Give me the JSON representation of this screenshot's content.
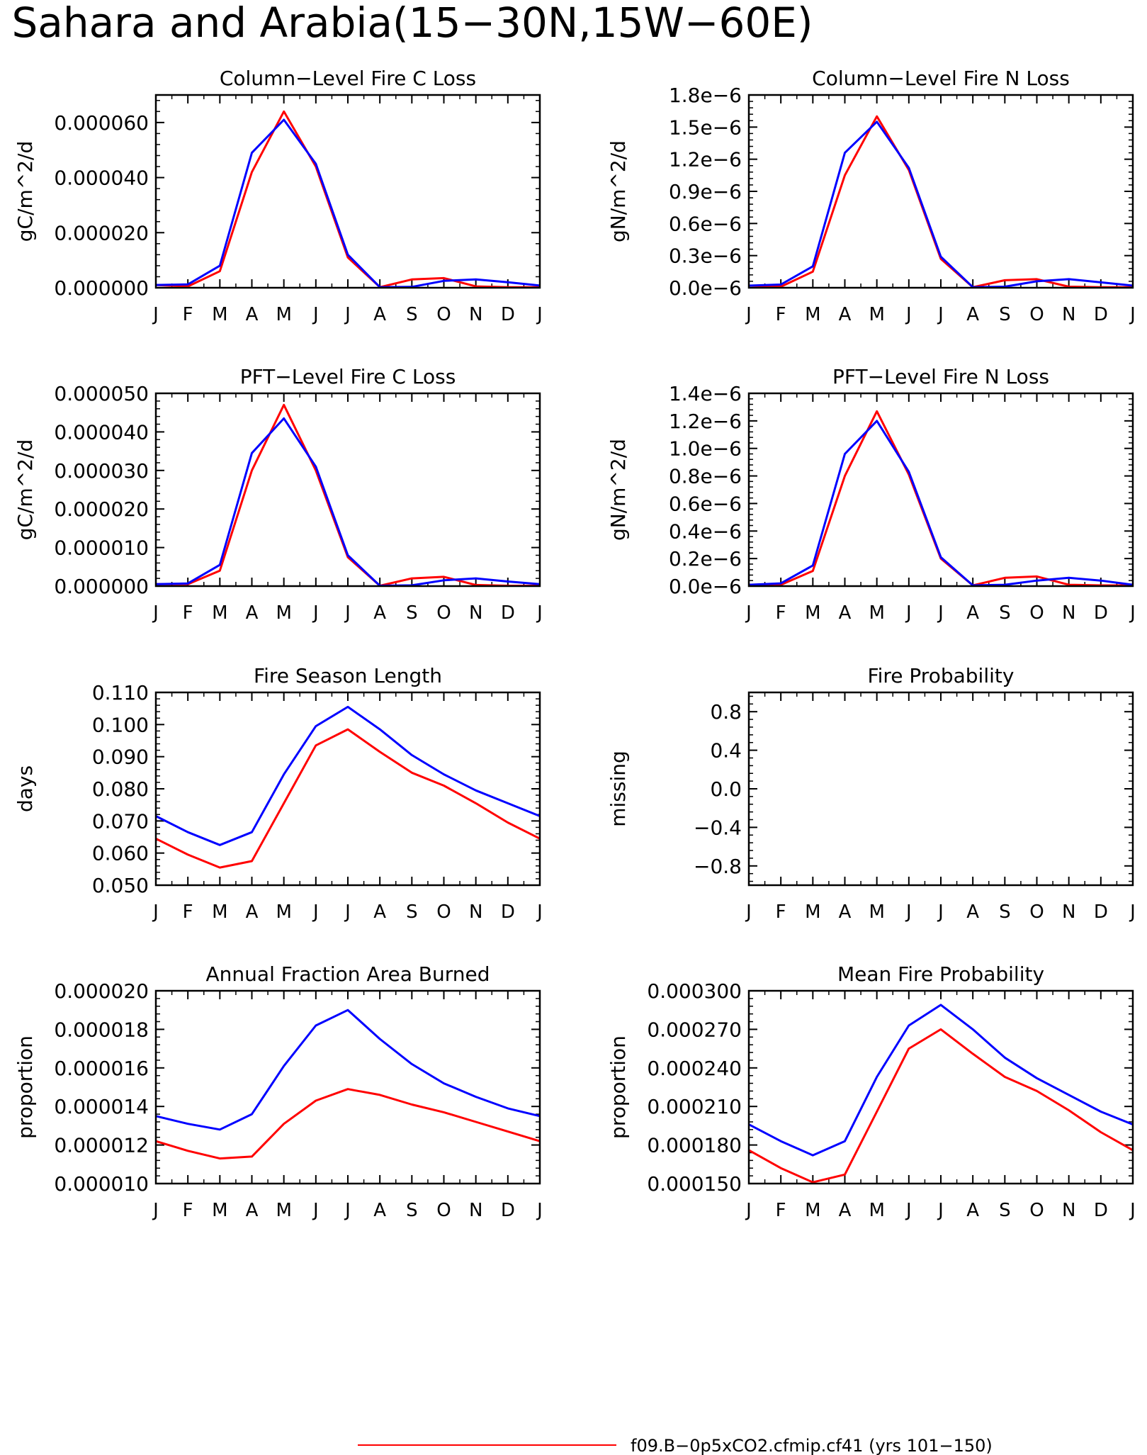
{
  "page": {
    "title": "Sahara and Arabia(15−30N,15W−60E)"
  },
  "months": [
    "J",
    "F",
    "M",
    "A",
    "M",
    "J",
    "J",
    "A",
    "S",
    "O",
    "N",
    "D",
    "J"
  ],
  "colors": {
    "red": "#ff0000",
    "blue": "#0000ff"
  },
  "legend": {
    "entries": [
      {
        "label": "f09.B−0p5xCO2.cfmip.cf41 (yrs 101−150)",
        "color": "#ff0000"
      }
    ]
  },
  "chart_data": [
    {
      "type": "line",
      "title": "Column−Level Fire C Loss",
      "ylabel": "gC/m^2/d",
      "ylim": [
        0,
        7e-05
      ],
      "yticks": [
        0,
        2e-05,
        4e-05,
        6e-05
      ],
      "ytick_labels": [
        "0.000000",
        "0.000020",
        "0.000040",
        "0.000060"
      ],
      "series": [
        {
          "color": "#ff0000",
          "values": [
            1e-06,
            5e-07,
            6e-06,
            4.2e-05,
            6.4e-05,
            4.4e-05,
            1.1e-05,
            2e-07,
            3e-06,
            3.5e-06,
            5e-07,
            2e-07,
            2e-07
          ]
        },
        {
          "color": "#0000ff",
          "values": [
            1e-06,
            1.2e-06,
            8e-06,
            4.9e-05,
            6.1e-05,
            4.5e-05,
            1.2e-05,
            2e-07,
            3e-07,
            2.5e-06,
            3e-06,
            2e-06,
            8e-07
          ]
        }
      ]
    },
    {
      "type": "line",
      "title": "Column−Level Fire N Loss",
      "ylabel": "gN/m^2/d",
      "ylim": [
        0,
        1.8e-06
      ],
      "yticks": [
        0,
        3e-07,
        6e-07,
        9e-07,
        1.2e-06,
        1.5e-06,
        1.8e-06
      ],
      "ytick_labels": [
        "0.0e−6",
        "0.3e−6",
        "0.6e−6",
        "0.9e−6",
        "1.2e−6",
        "1.5e−6",
        "1.8e−6"
      ],
      "series": [
        {
          "color": "#ff0000",
          "values": [
            2e-08,
            1e-08,
            1.5e-07,
            1.05e-06,
            1.6e-06,
            1.1e-06,
            2.7e-07,
            5e-09,
            7e-08,
            8e-08,
            1e-08,
            5e-09,
            5e-09
          ]
        },
        {
          "color": "#0000ff",
          "values": [
            2e-08,
            3e-08,
            2e-07,
            1.26e-06,
            1.55e-06,
            1.12e-06,
            2.9e-07,
            5e-09,
            1e-08,
            6e-08,
            8e-08,
            5e-08,
            2e-08
          ]
        }
      ]
    },
    {
      "type": "line",
      "title": "PFT−Level Fire C Loss",
      "ylabel": "gC/m^2/d",
      "ylim": [
        0,
        5e-05
      ],
      "yticks": [
        0,
        1e-05,
        2e-05,
        3e-05,
        4e-05,
        5e-05
      ],
      "ytick_labels": [
        "0.000000",
        "0.000010",
        "0.000020",
        "0.000030",
        "0.000040",
        "0.000050"
      ],
      "series": [
        {
          "color": "#ff0000",
          "values": [
            5e-07,
            5e-07,
            4e-06,
            3e-05,
            4.7e-05,
            3e-05,
            7.5e-06,
            1e-07,
            2e-06,
            2.4e-06,
            3e-07,
            1e-07,
            1e-07
          ]
        },
        {
          "color": "#0000ff",
          "values": [
            5e-07,
            7e-07,
            5.5e-06,
            3.45e-05,
            4.35e-05,
            3.1e-05,
            8e-06,
            1e-07,
            2e-07,
            1.5e-06,
            2e-06,
            1.2e-06,
            5e-07
          ]
        }
      ]
    },
    {
      "type": "line",
      "title": "PFT−Level Fire N Loss",
      "ylabel": "gN/m^2/d",
      "ylim": [
        0,
        1.4e-06
      ],
      "yticks": [
        0,
        2e-07,
        4e-07,
        6e-07,
        8e-07,
        1e-06,
        1.2e-06,
        1.4e-06
      ],
      "ytick_labels": [
        "0.0e−6",
        "0.2e−6",
        "0.4e−6",
        "0.6e−6",
        "0.8e−6",
        "1.0e−6",
        "1.2e−6",
        "1.4e−6"
      ],
      "series": [
        {
          "color": "#ff0000",
          "values": [
            1e-08,
            1e-08,
            1.1e-07,
            8e-07,
            1.27e-06,
            8.1e-07,
            2e-07,
            5e-09,
            6e-08,
            7e-08,
            1e-08,
            5e-09,
            5e-09
          ]
        },
        {
          "color": "#0000ff",
          "values": [
            1e-08,
            2e-08,
            1.5e-07,
            9.6e-07,
            1.2e-06,
            8.3e-07,
            2.1e-07,
            5e-09,
            1e-08,
            4e-08,
            6e-08,
            4e-08,
            1e-08
          ]
        }
      ]
    },
    {
      "type": "line",
      "title": "Fire Season Length",
      "ylabel": "days",
      "ylim": [
        0.05,
        0.11
      ],
      "yticks": [
        0.05,
        0.06,
        0.07,
        0.08,
        0.09,
        0.1,
        0.11
      ],
      "ytick_labels": [
        "0.050",
        "0.060",
        "0.070",
        "0.080",
        "0.090",
        "0.100",
        "0.110"
      ],
      "series": [
        {
          "color": "#ff0000",
          "values": [
            0.0645,
            0.0595,
            0.0555,
            0.0575,
            0.0755,
            0.0935,
            0.0985,
            0.0915,
            0.085,
            0.081,
            0.0755,
            0.0695,
            0.0645
          ]
        },
        {
          "color": "#0000ff",
          "values": [
            0.0715,
            0.0665,
            0.0625,
            0.0665,
            0.0845,
            0.0995,
            0.1055,
            0.0985,
            0.0905,
            0.0845,
            0.0795,
            0.0755,
            0.0715
          ]
        }
      ]
    },
    {
      "type": "line",
      "title": "Fire Probability",
      "ylabel": "missing",
      "ylim": [
        -1,
        1
      ],
      "yticks": [
        -0.8,
        -0.4,
        0,
        0.4,
        0.8
      ],
      "ytick_labels": [
        "−0.8",
        "−0.4",
        "0.0",
        "0.4",
        "0.8"
      ],
      "series": []
    },
    {
      "type": "line",
      "title": "Annual Fraction Area Burned",
      "ylabel": "proportion",
      "ylim": [
        1e-05,
        2e-05
      ],
      "yticks": [
        1e-05,
        1.2e-05,
        1.4e-05,
        1.6e-05,
        1.8e-05,
        2e-05
      ],
      "ytick_labels": [
        "0.000010",
        "0.000012",
        "0.000014",
        "0.000016",
        "0.000018",
        "0.000020"
      ],
      "series": [
        {
          "color": "#ff0000",
          "values": [
            1.22e-05,
            1.17e-05,
            1.13e-05,
            1.14e-05,
            1.31e-05,
            1.43e-05,
            1.49e-05,
            1.46e-05,
            1.41e-05,
            1.37e-05,
            1.32e-05,
            1.27e-05,
            1.22e-05
          ]
        },
        {
          "color": "#0000ff",
          "values": [
            1.35e-05,
            1.31e-05,
            1.28e-05,
            1.36e-05,
            1.61e-05,
            1.82e-05,
            1.9e-05,
            1.75e-05,
            1.62e-05,
            1.52e-05,
            1.45e-05,
            1.39e-05,
            1.35e-05
          ]
        }
      ]
    },
    {
      "type": "line",
      "title": "Mean Fire Probability",
      "ylabel": "proportion",
      "ylim": [
        0.00015,
        0.0003
      ],
      "yticks": [
        0.00015,
        0.00018,
        0.00021,
        0.00024,
        0.00027,
        0.0003
      ],
      "ytick_labels": [
        "0.000150",
        "0.000180",
        "0.000210",
        "0.000240",
        "0.000270",
        "0.000300"
      ],
      "series": [
        {
          "color": "#ff0000",
          "values": [
            0.000176,
            0.000162,
            0.000151,
            0.000157,
            0.000206,
            0.000255,
            0.00027,
            0.000251,
            0.000233,
            0.000222,
            0.000207,
            0.00019,
            0.000176
          ]
        },
        {
          "color": "#0000ff",
          "values": [
            0.000196,
            0.000183,
            0.000172,
            0.000183,
            0.000233,
            0.000273,
            0.000289,
            0.00027,
            0.000248,
            0.000232,
            0.000219,
            0.000206,
            0.000196
          ]
        }
      ]
    }
  ]
}
